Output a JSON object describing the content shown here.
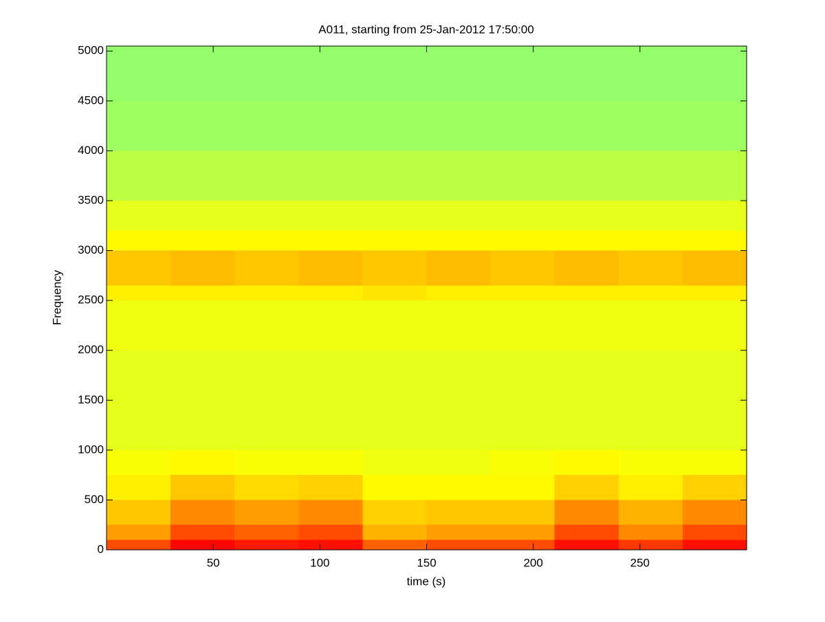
{
  "chart_data": {
    "type": "spectrogram",
    "title": "A011, starting from 25-Jan-2012 17:50:00",
    "x_label": "time (s)",
    "y_label": "Frequency",
    "colormap": "jet",
    "time_edges": [
      0,
      30,
      60,
      90,
      120,
      150,
      180,
      210,
      240,
      270,
      300
    ],
    "frequency_edges": [
      0,
      100,
      250,
      500,
      750,
      1000,
      1500,
      2000,
      2500,
      2650,
      3000,
      3200,
      3500,
      4000,
      4500,
      5050
    ],
    "z": [
      [
        0.8,
        0.87,
        0.85,
        0.86,
        0.78,
        0.8,
        0.8,
        0.86,
        0.82,
        0.86
      ],
      [
        0.72,
        0.8,
        0.78,
        0.8,
        0.7,
        0.72,
        0.72,
        0.8,
        0.74,
        0.8
      ],
      [
        0.68,
        0.74,
        0.72,
        0.74,
        0.67,
        0.68,
        0.68,
        0.74,
        0.7,
        0.74
      ],
      [
        0.64,
        0.68,
        0.66,
        0.67,
        0.63,
        0.63,
        0.63,
        0.67,
        0.64,
        0.67
      ],
      [
        0.62,
        0.63,
        0.62,
        0.62,
        0.61,
        0.61,
        0.62,
        0.63,
        0.62,
        0.62
      ],
      [
        0.6,
        0.6,
        0.6,
        0.6,
        0.6,
        0.6,
        0.6,
        0.6,
        0.6,
        0.6
      ],
      [
        0.6,
        0.6,
        0.6,
        0.6,
        0.6,
        0.6,
        0.6,
        0.6,
        0.6,
        0.6
      ],
      [
        0.61,
        0.61,
        0.61,
        0.61,
        0.61,
        0.61,
        0.61,
        0.61,
        0.61,
        0.61
      ],
      [
        0.64,
        0.64,
        0.64,
        0.64,
        0.65,
        0.64,
        0.64,
        0.64,
        0.64,
        0.64
      ],
      [
        0.68,
        0.69,
        0.68,
        0.69,
        0.68,
        0.69,
        0.68,
        0.69,
        0.68,
        0.69
      ],
      [
        0.63,
        0.63,
        0.63,
        0.63,
        0.63,
        0.63,
        0.63,
        0.63,
        0.63,
        0.63
      ],
      [
        0.6,
        0.6,
        0.6,
        0.6,
        0.6,
        0.6,
        0.6,
        0.6,
        0.6,
        0.6
      ],
      [
        0.56,
        0.56,
        0.56,
        0.56,
        0.56,
        0.56,
        0.56,
        0.56,
        0.56,
        0.56
      ],
      [
        0.53,
        0.53,
        0.53,
        0.53,
        0.53,
        0.53,
        0.53,
        0.53,
        0.53,
        0.53
      ],
      [
        0.52,
        0.52,
        0.52,
        0.52,
        0.52,
        0.52,
        0.52,
        0.52,
        0.52,
        0.52
      ]
    ],
    "xlim": [
      0,
      300
    ],
    "ylim": [
      0,
      5050
    ],
    "xticks": [
      50,
      100,
      150,
      200,
      250
    ],
    "yticks": [
      0,
      500,
      1000,
      1500,
      2000,
      2500,
      3000,
      3500,
      4000,
      4500,
      5000
    ]
  }
}
